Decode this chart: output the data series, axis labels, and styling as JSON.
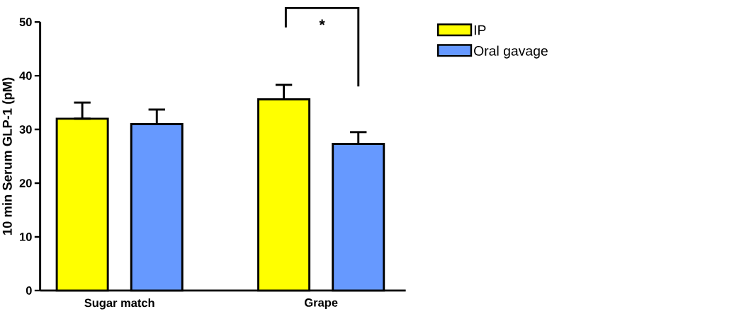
{
  "chart_data": {
    "type": "bar",
    "ylabel": "10 min Serum GLP-1 (pM)",
    "categories": [
      "Sugar match",
      "Grape"
    ],
    "series": [
      {
        "name": "IP",
        "color": "#ffff00",
        "values": [
          32.0,
          35.6
        ],
        "errors": [
          [
            32.0,
            35.0
          ],
          [
            35.6,
            38.3
          ]
        ]
      },
      {
        "name": "Oral gavage",
        "color": "#6699ff",
        "values": [
          31.0,
          27.3
        ],
        "errors": [
          [
            31.0,
            33.7
          ],
          [
            27.3,
            29.5
          ]
        ]
      }
    ],
    "ylim": [
      0,
      50
    ],
    "yticks": [
      0,
      10,
      20,
      30,
      40,
      50
    ],
    "legend": "top right",
    "grid": false,
    "annotations": [
      "*"
    ]
  }
}
